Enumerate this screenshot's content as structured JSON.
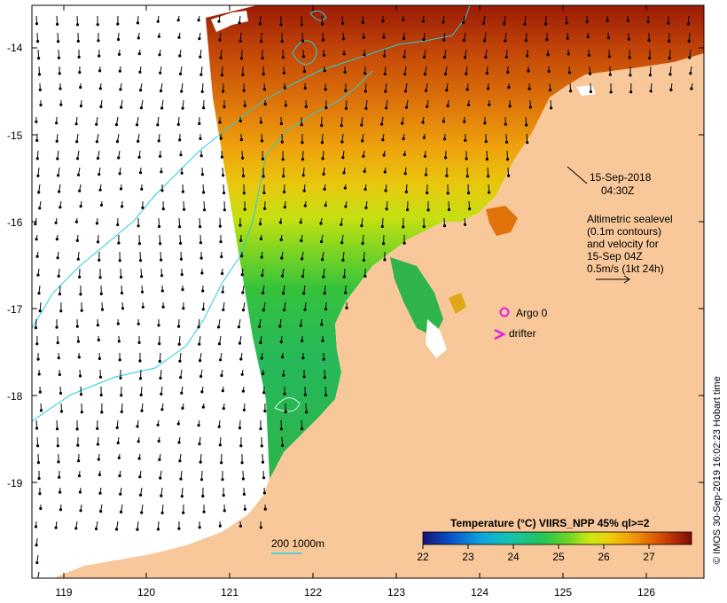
{
  "map": {
    "lon_ticks": [
      "119",
      "120",
      "121",
      "122",
      "123",
      "124",
      "125",
      "126"
    ],
    "lat_ticks": [
      "-14",
      "-15",
      "-16",
      "-17",
      "-18",
      "-19"
    ],
    "date_label": "15-Sep-2018",
    "time_label": "04:30Z",
    "info_lines": [
      "Altimetric sealevel",
      "(0.1m contours)",
      "and velocity for",
      "15-Sep 04Z",
      "0.5m/s (1kt 24h)"
    ],
    "argo_label": "Argo 0",
    "drifter_label": "drifter",
    "depth_scale_label": "200  1000m",
    "credit": "© IMOS 30-Sep-2019 16:02:23 Hobart time"
  },
  "legend": {
    "title": "Temperature (°C) VIIRS_NPP 45% ql>=2",
    "ticks": [
      "22",
      "23",
      "24",
      "25",
      "26",
      "27"
    ],
    "colors": [
      "#1a1a8c",
      "#0b6fd6",
      "#12c0c8",
      "#1ec46a",
      "#5fd62a",
      "#d8ea12",
      "#f0c20a",
      "#ee8a08",
      "#d24a06",
      "#8a1205"
    ]
  },
  "colors": {
    "land": "#f8c79a",
    "contour": "#22d0e0",
    "argo": "#e020e0",
    "drifter": "#e020e0",
    "arrow": "#000000"
  }
}
